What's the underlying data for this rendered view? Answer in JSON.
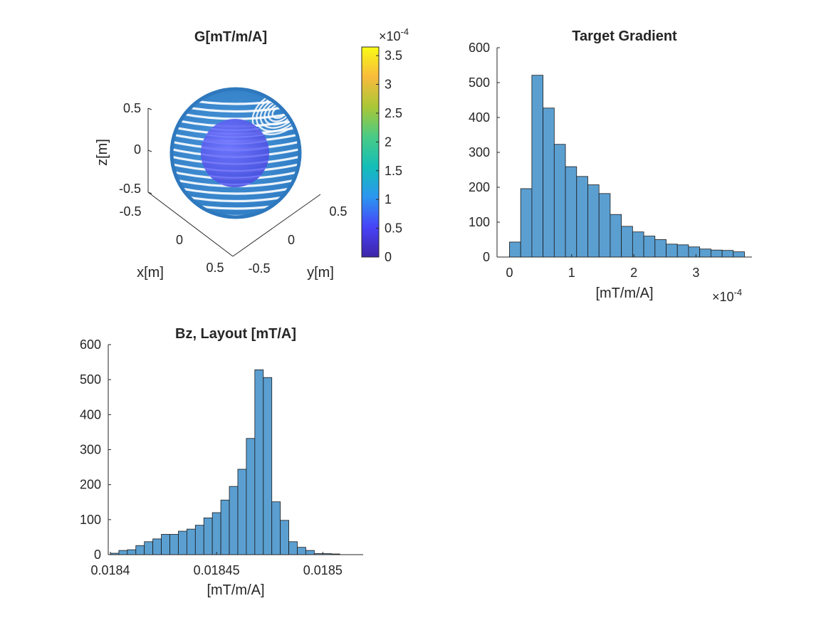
{
  "chart_data": [
    {
      "type": "scatter",
      "title": "G[mT/m/A]",
      "xlabel": "x[m]",
      "ylabel": "y[m]",
      "zlabel": "z[m]",
      "xticks": [
        "-0.5",
        "0",
        "0.5"
      ],
      "yticks": [
        "-0.5",
        "0",
        "0.5"
      ],
      "zticks": [
        "0.5",
        "0",
        "-0.5"
      ],
      "colorbar": {
        "ticks": [
          "0",
          "0.5",
          "1",
          "1.5",
          "2",
          "2.5",
          "3",
          "3.5"
        ],
        "tick_values": [
          0,
          0.5,
          1,
          1.5,
          2,
          2.5,
          3,
          3.5
        ],
        "limits": [
          0,
          3.65
        ],
        "multiplier_base": "×10",
        "multiplier_exp": "-4",
        "colormap": [
          "#3e26a8",
          "#4743f8",
          "#2c96f0",
          "#13beb8",
          "#48cb86",
          "#a9c737",
          "#f8bb3c",
          "#f9fb15"
        ]
      },
      "outer_sphere_color": "#3a87cf",
      "inner_sphere_color": "#5a5ff0"
    },
    {
      "type": "bar",
      "title": "Target Gradient",
      "xlabel": "[mT/m/A]",
      "ylabel": "",
      "xlim": [
        -0.2,
        3.9
      ],
      "ylim": [
        0,
        600
      ],
      "xticks": [
        0,
        1,
        2,
        3
      ],
      "yticks": [
        0,
        100,
        200,
        300,
        400,
        500,
        600
      ],
      "x_multiplier_base": "×10",
      "x_multiplier_exp": "-4",
      "bin_edges": [
        0.0,
        0.18,
        0.36,
        0.54,
        0.72,
        0.9,
        1.08,
        1.26,
        1.44,
        1.62,
        1.8,
        1.98,
        2.16,
        2.34,
        2.52,
        2.7,
        2.88,
        3.06,
        3.24,
        3.42,
        3.6,
        3.78
      ],
      "counts": [
        43,
        196,
        521,
        427,
        323,
        259,
        231,
        207,
        182,
        122,
        88,
        72,
        60,
        50,
        37,
        35,
        29,
        23,
        20,
        19,
        15
      ],
      "bar_color": "#5b9fd1"
    },
    {
      "type": "bar",
      "title": "Bz, Layout [mT/A]",
      "xlabel": "[mT/m/A]",
      "ylabel": "",
      "xlim": [
        0.018399,
        0.018519
      ],
      "ylim": [
        0,
        600
      ],
      "xticks": [
        "0.0184",
        "0.01845",
        "0.0185"
      ],
      "xtick_values": [
        0.0184,
        0.01845,
        0.0185
      ],
      "yticks": [
        0,
        100,
        200,
        300,
        400,
        500,
        600
      ],
      "bin_edges": [
        0.0184,
        0.018404,
        0.018408,
        0.018412,
        0.018416,
        0.01842,
        0.018424,
        0.018428,
        0.018432,
        0.018436,
        0.01844,
        0.018444,
        0.018448,
        0.018452,
        0.018456,
        0.01846,
        0.018464,
        0.018468,
        0.018472,
        0.018476,
        0.01848,
        0.018484,
        0.018488,
        0.018492,
        0.018496,
        0.0185,
        0.018504,
        0.018508
      ],
      "counts": [
        4,
        12,
        14,
        26,
        37,
        45,
        58,
        58,
        67,
        73,
        84,
        105,
        120,
        156,
        195,
        244,
        332,
        528,
        506,
        151,
        98,
        37,
        21,
        12,
        3,
        3,
        2
      ],
      "bar_color": "#5b9fd1"
    }
  ]
}
